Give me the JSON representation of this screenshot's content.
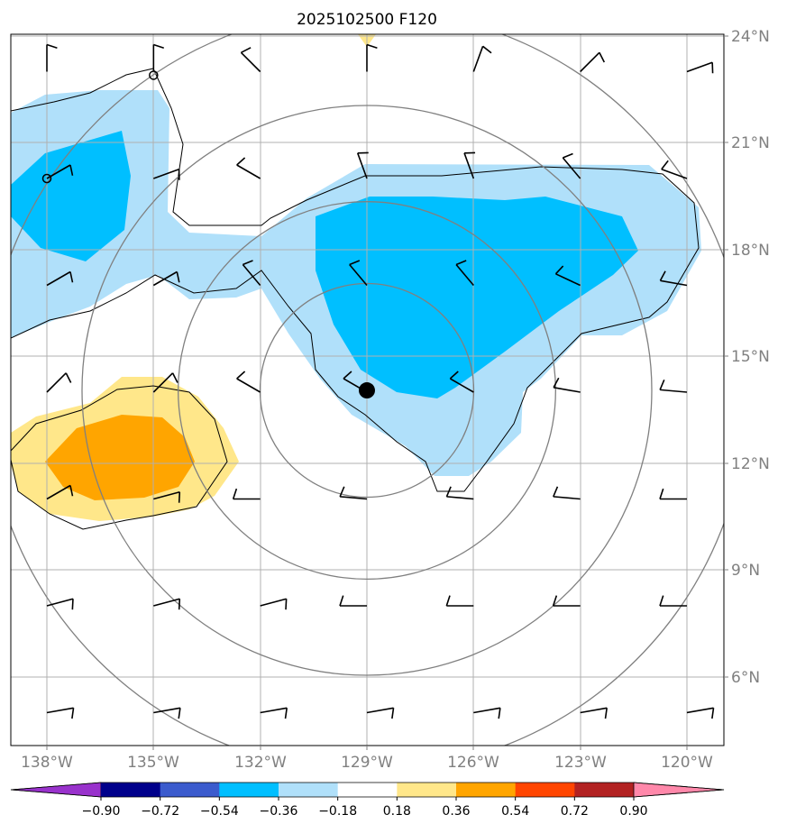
{
  "title": "2025102500 F120",
  "map": {
    "lon_range": [
      -139,
      -119.5
    ],
    "lat_range": [
      4,
      24
    ],
    "lon_ticks": [
      {
        "value": -138,
        "label": "138°W"
      },
      {
        "value": -135,
        "label": "135°W"
      },
      {
        "value": -132,
        "label": "132°W"
      },
      {
        "value": -129,
        "label": "129°W"
      },
      {
        "value": -126,
        "label": "126°W"
      },
      {
        "value": -123,
        "label": "123°W"
      },
      {
        "value": -120,
        "label": "120°W"
      }
    ],
    "lat_ticks": [
      {
        "value": 24,
        "label": "24°N"
      },
      {
        "value": 21,
        "label": "21°N"
      },
      {
        "value": 18,
        "label": "18°N"
      },
      {
        "value": 15,
        "label": "15°N"
      },
      {
        "value": 12,
        "label": "12°N"
      },
      {
        "value": 9,
        "label": "9°N"
      },
      {
        "value": 6,
        "label": "6°N"
      }
    ],
    "storm_center": {
      "lon": -129,
      "lat": 14.05
    },
    "range_rings_deg": [
      3,
      5.3,
      8,
      10.7
    ],
    "small_circles": [
      {
        "lon": -135,
        "lat": 22.9
      },
      {
        "lon": -138,
        "lat": 20
      }
    ],
    "colors": {
      "neg_light": "#b0e0fa",
      "neg_mid": "#00bfff",
      "pos_light": "#ffe78a",
      "pos_mid": "#ffa500",
      "grid": "#b0b0b0",
      "ring": "#808080"
    }
  },
  "colorbar": {
    "colors": [
      "#9932cc",
      "#00008b",
      "#3b5bcd",
      "#00bfff",
      "#b0e0fa",
      "#ffffff",
      "#ffe78a",
      "#ffa500",
      "#ff4500",
      "#b22222",
      "#ff88aa"
    ],
    "labels": [
      "−0.90",
      "−0.72",
      "−0.54",
      "−0.36",
      "−0.18",
      "0.18",
      "0.36",
      "0.54",
      "0.72",
      "0.90"
    ]
  },
  "wind_barbs": {
    "lons": [
      -138,
      -135,
      -132,
      -129,
      -126,
      -123,
      -120
    ],
    "lats": [
      23,
      20,
      17,
      14,
      11,
      8,
      5
    ],
    "directions_deg": [
      [
        0,
        0,
        315,
        0,
        20,
        45,
        70
      ],
      [
        60,
        70,
        300,
        340,
        340,
        320,
        290
      ],
      [
        60,
        60,
        320,
        320,
        320,
        295,
        280
      ],
      [
        45,
        45,
        300,
        300,
        300,
        280,
        275
      ],
      [
        60,
        75,
        270,
        275,
        275,
        275,
        270
      ],
      [
        75,
        75,
        75,
        270,
        270,
        270,
        270
      ],
      [
        80,
        80,
        80,
        80,
        80,
        80,
        80
      ]
    ]
  }
}
